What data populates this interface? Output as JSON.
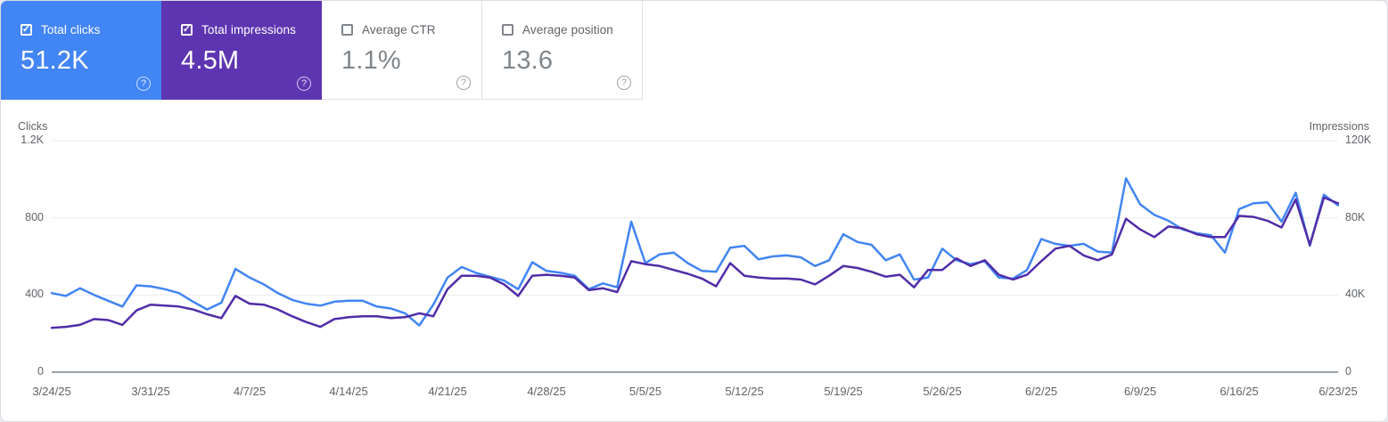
{
  "colors": {
    "clicks_accent": "#4285f4",
    "impressions_accent": "#5e35b1",
    "impressions_line": "#512da8",
    "gridline": "#ebebeb",
    "axis_line": "#9aa0a6",
    "muted_text": "#5f6368"
  },
  "icons": {
    "help_icon": "?",
    "checkmark_icon": "✓"
  },
  "cards": [
    {
      "label": "Total clicks",
      "value": "51.2K",
      "checked": true,
      "selected": true,
      "color": "blue"
    },
    {
      "label": "Total impressions",
      "value": "4.5M",
      "checked": true,
      "selected": true,
      "color": "purple"
    },
    {
      "label": "Average CTR",
      "value": "1.1%",
      "checked": false,
      "selected": false,
      "color": "white"
    },
    {
      "label": "Average position",
      "value": "13.6",
      "checked": false,
      "selected": false,
      "color": "white"
    }
  ],
  "chart_data": {
    "type": "line",
    "left_axis": {
      "title": "Clicks",
      "ticks": [
        "1.2K",
        "800",
        "400",
        "0"
      ],
      "tick_values": [
        1200,
        800,
        400,
        0
      ],
      "max": 1200
    },
    "right_axis": {
      "title": "Impressions",
      "ticks": [
        "120K",
        "80K",
        "40K",
        "0"
      ],
      "tick_values": [
        120000,
        80000,
        40000,
        0
      ],
      "max": 120000
    },
    "x_tick_labels": [
      "3/24/25",
      "3/31/25",
      "4/7/25",
      "4/14/25",
      "4/21/25",
      "4/28/25",
      "5/5/25",
      "5/12/25",
      "5/19/25",
      "5/26/25",
      "6/2/25",
      "6/9/25",
      "6/16/25",
      "6/23/25"
    ],
    "dates": [
      "3/24/25",
      "3/25/25",
      "3/26/25",
      "3/27/25",
      "3/28/25",
      "3/29/25",
      "3/30/25",
      "3/31/25",
      "4/1/25",
      "4/2/25",
      "4/3/25",
      "4/4/25",
      "4/5/25",
      "4/6/25",
      "4/7/25",
      "4/8/25",
      "4/9/25",
      "4/10/25",
      "4/11/25",
      "4/12/25",
      "4/13/25",
      "4/14/25",
      "4/15/25",
      "4/16/25",
      "4/17/25",
      "4/18/25",
      "4/19/25",
      "4/20/25",
      "4/21/25",
      "4/22/25",
      "4/23/25",
      "4/24/25",
      "4/25/25",
      "4/26/25",
      "4/27/25",
      "4/28/25",
      "4/29/25",
      "4/30/25",
      "5/1/25",
      "5/2/25",
      "5/3/25",
      "5/4/25",
      "5/5/25",
      "5/6/25",
      "5/7/25",
      "5/8/25",
      "5/9/25",
      "5/10/25",
      "5/11/25",
      "5/12/25",
      "5/13/25",
      "5/14/25",
      "5/15/25",
      "5/16/25",
      "5/17/25",
      "5/18/25",
      "5/19/25",
      "5/20/25",
      "5/21/25",
      "5/22/25",
      "5/23/25",
      "5/24/25",
      "5/25/25",
      "5/26/25",
      "5/27/25",
      "5/28/25",
      "5/29/25",
      "5/30/25",
      "5/31/25",
      "6/1/25",
      "6/2/25",
      "6/3/25",
      "6/4/25",
      "6/5/25",
      "6/6/25",
      "6/7/25",
      "6/8/25",
      "6/9/25",
      "6/10/25",
      "6/11/25",
      "6/12/25",
      "6/13/25",
      "6/14/25",
      "6/15/25",
      "6/16/25",
      "6/17/25",
      "6/18/25",
      "6/19/25",
      "6/20/25",
      "6/21/25",
      "6/22/25",
      "6/23/25"
    ],
    "series": [
      {
        "name": "Clicks",
        "color": "#4285f4",
        "axis": "left",
        "values": [
          410,
          395,
          435,
          400,
          370,
          340,
          450,
          445,
          430,
          410,
          365,
          325,
          360,
          535,
          490,
          455,
          410,
          375,
          355,
          345,
          365,
          370,
          370,
          340,
          330,
          305,
          242,
          350,
          490,
          545,
          515,
          495,
          475,
          430,
          570,
          525,
          515,
          500,
          430,
          460,
          440,
          780,
          565,
          610,
          620,
          565,
          525,
          520,
          645,
          655,
          585,
          600,
          605,
          595,
          550,
          580,
          715,
          675,
          660,
          580,
          610,
          480,
          490,
          640,
          580,
          560,
          575,
          490,
          485,
          530,
          690,
          665,
          655,
          665,
          625,
          620,
          1005,
          870,
          815,
          785,
          740,
          720,
          710,
          620,
          845,
          875,
          880,
          780,
          930,
          655,
          920,
          865
        ]
      },
      {
        "name": "Impressions",
        "color": "#512da8",
        "axis": "right",
        "values": [
          23000,
          23500,
          24500,
          27500,
          27000,
          24500,
          32000,
          35000,
          34500,
          34000,
          32500,
          30000,
          28000,
          39500,
          35500,
          35000,
          32500,
          29000,
          26000,
          23500,
          27500,
          28500,
          29000,
          29000,
          28000,
          28500,
          30500,
          29000,
          43000,
          50000,
          50000,
          49000,
          45500,
          39500,
          50000,
          50500,
          50000,
          49000,
          42500,
          43500,
          41500,
          57500,
          56000,
          55000,
          53000,
          51000,
          48500,
          44500,
          56500,
          50000,
          49000,
          48500,
          48500,
          48000,
          45500,
          50000,
          55000,
          54000,
          52000,
          49500,
          50500,
          44000,
          53000,
          53000,
          59000,
          55000,
          58000,
          50500,
          48000,
          50500,
          57500,
          64000,
          65500,
          60500,
          58000,
          61000,
          79500,
          74000,
          70000,
          75500,
          74500,
          71500,
          70000,
          70000,
          81000,
          80500,
          78500,
          75000,
          89500,
          66000,
          90500,
          87500
        ]
      }
    ],
    "grid": true,
    "legend_position": "none"
  }
}
